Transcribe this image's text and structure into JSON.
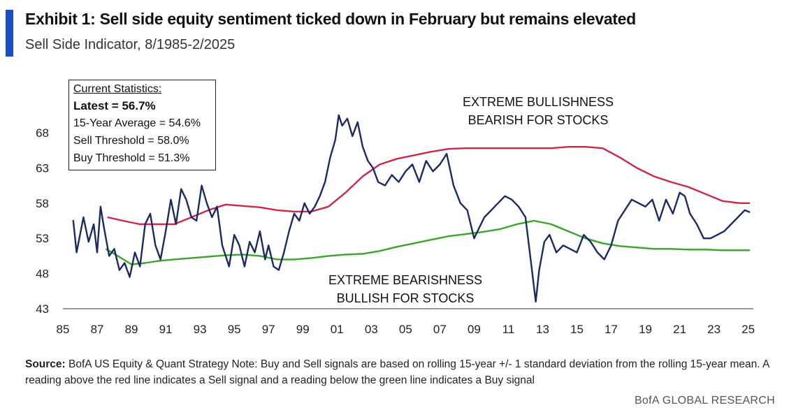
{
  "header": {
    "title": "Exhibit 1: Sell side equity sentiment ticked down in February but remains elevated",
    "subtitle": "Sell Side Indicator, 8/1985-2/2025"
  },
  "stats_box": {
    "heading": "Current Statistics:",
    "lines": [
      "Latest = 56.7%",
      "15-Year Average = 54.6%",
      "Sell Threshold = 58.0%",
      "Buy Threshold = 51.3%"
    ]
  },
  "annotations": {
    "top": [
      "EXTREME BULLISHNESS",
      "BEARISH FOR STOCKS"
    ],
    "bottom": [
      "EXTREME BEARISHNESS",
      "BULLISH FOR STOCKS"
    ]
  },
  "footer": {
    "source_label": "Source:",
    "source_text": " BofA US Equity & Quant Strategy Note: Buy and Sell signals are based on rolling 15-year +/- 1 standard deviation from the rolling 15-year mean. A reading above the red line indicates a Sell signal and a reading below the green line indicates a Buy signal",
    "brand": "BofA GLOBAL RESEARCH"
  },
  "colors": {
    "accent": "#1a4fc4",
    "indicator": "#1b2a63",
    "sell_threshold": "#c8284a",
    "buy_threshold": "#3aa52a"
  },
  "chart_data": {
    "type": "line",
    "title": "Sell Side Indicator",
    "xlim": [
      1985,
      2025.3
    ],
    "ylim": [
      43,
      70
    ],
    "yticks": [
      43,
      48,
      53,
      58,
      63,
      68
    ],
    "xticks": [
      1985,
      1987,
      1989,
      1991,
      1993,
      1995,
      1997,
      1999,
      2001,
      2003,
      2005,
      2007,
      2009,
      2011,
      2013,
      2015,
      2017,
      2019,
      2021,
      2023,
      2025
    ],
    "xtick_labels": [
      "85",
      "87",
      "89",
      "91",
      "93",
      "95",
      "97",
      "99",
      "01",
      "03",
      "05",
      "07",
      "09",
      "11",
      "13",
      "15",
      "17",
      "19",
      "21",
      "23",
      "25"
    ],
    "grid": false,
    "series": [
      {
        "key": "indicator",
        "x": [
          1985.6,
          1985.8,
          1986.0,
          1986.2,
          1986.5,
          1986.8,
          1987.0,
          1987.2,
          1987.4,
          1987.7,
          1988.0,
          1988.3,
          1988.6,
          1988.9,
          1989.2,
          1989.5,
          1989.8,
          1990.1,
          1990.4,
          1990.7,
          1991.0,
          1991.3,
          1991.6,
          1991.9,
          1992.2,
          1992.5,
          1992.8,
          1993.1,
          1993.4,
          1993.7,
          1994.0,
          1994.3,
          1994.7,
          1995.0,
          1995.3,
          1995.6,
          1995.9,
          1996.2,
          1996.5,
          1996.8,
          1997.0,
          1997.3,
          1997.6,
          1997.9,
          1998.2,
          1998.5,
          1998.8,
          1999.1,
          1999.4,
          1999.7,
          2000.0,
          2000.3,
          2000.6,
          2000.9,
          2001.1,
          2001.3,
          2001.6,
          2001.9,
          2002.2,
          2002.5,
          2002.8,
          2003.1,
          2003.4,
          2003.8,
          2004.2,
          2004.6,
          2005.0,
          2005.4,
          2005.8,
          2006.2,
          2006.6,
          2007.0,
          2007.4,
          2007.8,
          2008.2,
          2008.6,
          2009.0,
          2009.3,
          2009.6,
          2010.0,
          2010.4,
          2010.8,
          2011.2,
          2011.6,
          2012.0,
          2012.3,
          2012.6,
          2012.8,
          2013.1,
          2013.4,
          2013.8,
          2014.2,
          2014.6,
          2015.0,
          2015.4,
          2015.8,
          2016.2,
          2016.6,
          2017.0,
          2017.4,
          2017.8,
          2018.2,
          2018.6,
          2019.0,
          2019.4,
          2019.8,
          2020.2,
          2020.6,
          2021.0,
          2021.3,
          2021.6,
          2022.0,
          2022.4,
          2022.8,
          2023.2,
          2023.6,
          2024.0,
          2024.4,
          2024.8,
          2025.1
        ],
        "y": [
          55.6,
          51.0,
          53.5,
          56.0,
          52.5,
          55.0,
          51.0,
          57.5,
          54.5,
          50.5,
          51.5,
          48.5,
          49.5,
          47.5,
          51.0,
          49.0,
          55.0,
          56.5,
          52.0,
          50.0,
          54.0,
          58.5,
          55.0,
          60.0,
          58.5,
          56.0,
          55.5,
          60.5,
          58.0,
          56.0,
          57.5,
          52.0,
          49.0,
          53.5,
          52.0,
          49.0,
          52.5,
          51.0,
          54.0,
          50.0,
          52.0,
          49.0,
          48.5,
          51.0,
          54.0,
          56.5,
          55.5,
          58.0,
          56.5,
          57.5,
          59.0,
          61.0,
          64.5,
          67.0,
          70.5,
          69.0,
          70.0,
          67.5,
          69.5,
          66.0,
          64.0,
          63.0,
          61.0,
          60.5,
          62.0,
          61.0,
          62.5,
          63.5,
          61.0,
          64.0,
          62.5,
          63.5,
          65.0,
          60.5,
          58.0,
          57.0,
          53.0,
          54.5,
          56.0,
          57.0,
          58.0,
          59.0,
          58.5,
          57.5,
          56.0,
          50.0,
          44.0,
          48.5,
          52.5,
          53.5,
          51.0,
          52.0,
          51.5,
          51.0,
          53.5,
          52.5,
          51.0,
          50.0,
          52.0,
          55.5,
          57.0,
          58.5,
          58.0,
          57.5,
          58.5,
          55.5,
          58.5,
          56.5,
          59.5,
          59.0,
          56.5,
          55.0,
          53.0,
          53.0,
          53.5,
          54.0,
          55.0,
          56.0,
          57.0,
          56.7
        ]
      },
      {
        "key": "sell_threshold",
        "x": [
          1987.6,
          1988.5,
          1989.5,
          1990.5,
          1991.5,
          1992.5,
          1993.5,
          1994.5,
          1995.5,
          1996.5,
          1997.5,
          1998.5,
          1999.5,
          2000.5,
          2001.5,
          2002.5,
          2003.5,
          2004.5,
          2005.5,
          2006.5,
          2007.5,
          2008.5,
          2009.5,
          2010.5,
          2011.5,
          2012.5,
          2013.5,
          2014.5,
          2015.5,
          2016.5,
          2017.5,
          2018.5,
          2019.5,
          2020.5,
          2021.5,
          2022.5,
          2023.5,
          2024.5,
          2025.1
        ],
        "y": [
          56.0,
          55.5,
          55.0,
          55.0,
          55.0,
          56.0,
          57.0,
          57.8,
          57.6,
          57.4,
          57.0,
          56.8,
          56.8,
          57.5,
          59.5,
          61.8,
          63.5,
          64.3,
          64.8,
          65.3,
          65.7,
          65.8,
          65.8,
          65.8,
          65.8,
          65.8,
          65.8,
          66.0,
          66.0,
          65.8,
          64.5,
          63.0,
          61.8,
          61.0,
          60.3,
          59.3,
          58.3,
          58.0,
          58.0
        ]
      },
      {
        "key": "buy_threshold",
        "x": [
          1987.5,
          1988.2,
          1989.0,
          1989.8,
          1990.6,
          1991.5,
          1992.5,
          1993.5,
          1994.5,
          1995.5,
          1996.5,
          1997.5,
          1998.5,
          1999.5,
          2000.5,
          2001.5,
          2002.5,
          2003.5,
          2004.5,
          2005.5,
          2006.5,
          2007.5,
          2008.5,
          2009.5,
          2010.5,
          2011.5,
          2012.5,
          2013.5,
          2014.5,
          2015.5,
          2016.5,
          2017.5,
          2018.5,
          2019.5,
          2020.5,
          2021.5,
          2022.5,
          2023.5,
          2024.5,
          2025.1
        ],
        "y": [
          51.5,
          50.5,
          49.3,
          49.5,
          49.8,
          50.0,
          50.2,
          50.4,
          50.6,
          50.7,
          50.5,
          50.0,
          50.0,
          50.2,
          50.5,
          50.7,
          50.8,
          51.2,
          51.8,
          52.3,
          52.8,
          53.3,
          53.6,
          53.9,
          54.3,
          55.0,
          55.5,
          55.0,
          54.0,
          53.0,
          52.3,
          51.9,
          51.7,
          51.5,
          51.5,
          51.4,
          51.4,
          51.3,
          51.3,
          51.3
        ]
      }
    ]
  }
}
